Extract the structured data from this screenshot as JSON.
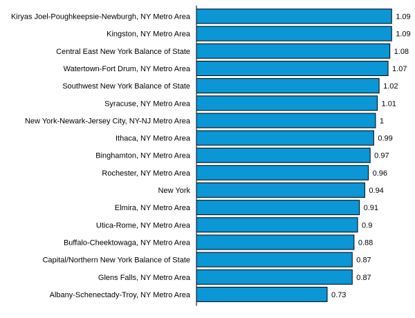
{
  "chart_data": {
    "type": "bar",
    "orientation": "horizontal",
    "title": "",
    "xlabel": "",
    "ylabel": "",
    "categories": [
      "Kiryas Joel-Poughkeepsie-Newburgh, NY Metro Area",
      "Kingston, NY Metro Area",
      "Central East New York Balance of State",
      "Watertown-Fort Drum, NY Metro Area",
      "Southwest New York Balance of State",
      "Syracuse, NY Metro Area",
      "New York-Newark-Jersey City, NY-NJ Metro Area",
      "Ithaca, NY Metro Area",
      "Binghamton, NY Metro Area",
      "Rochester, NY Metro Area",
      "New York",
      "Elmira, NY Metro Area",
      "Utica-Rome, NY Metro Area",
      "Buffalo-Cheektowaga, NY Metro Area",
      "Capital/Northern New York Balance of State",
      "Glens Falls, NY Metro Area",
      "Albany-Schenectady-Troy, NY Metro Area"
    ],
    "values": [
      1.09,
      1.09,
      1.08,
      1.07,
      1.02,
      1.01,
      1,
      0.99,
      0.97,
      0.96,
      0.94,
      0.91,
      0.9,
      0.88,
      0.87,
      0.87,
      0.73
    ],
    "value_labels": [
      "1.09",
      "1.09",
      "1.08",
      "1.07",
      "1.02",
      "1.01",
      "1",
      "0.99",
      "0.97",
      "0.96",
      "0.94",
      "0.91",
      "0.9",
      "0.88",
      "0.87",
      "0.87",
      "0.73"
    ],
    "xlim": [
      0,
      1.12
    ],
    "grid": false,
    "legend": "none",
    "bar_color": "#0b96d6",
    "bar_edge_color": "#000000"
  }
}
